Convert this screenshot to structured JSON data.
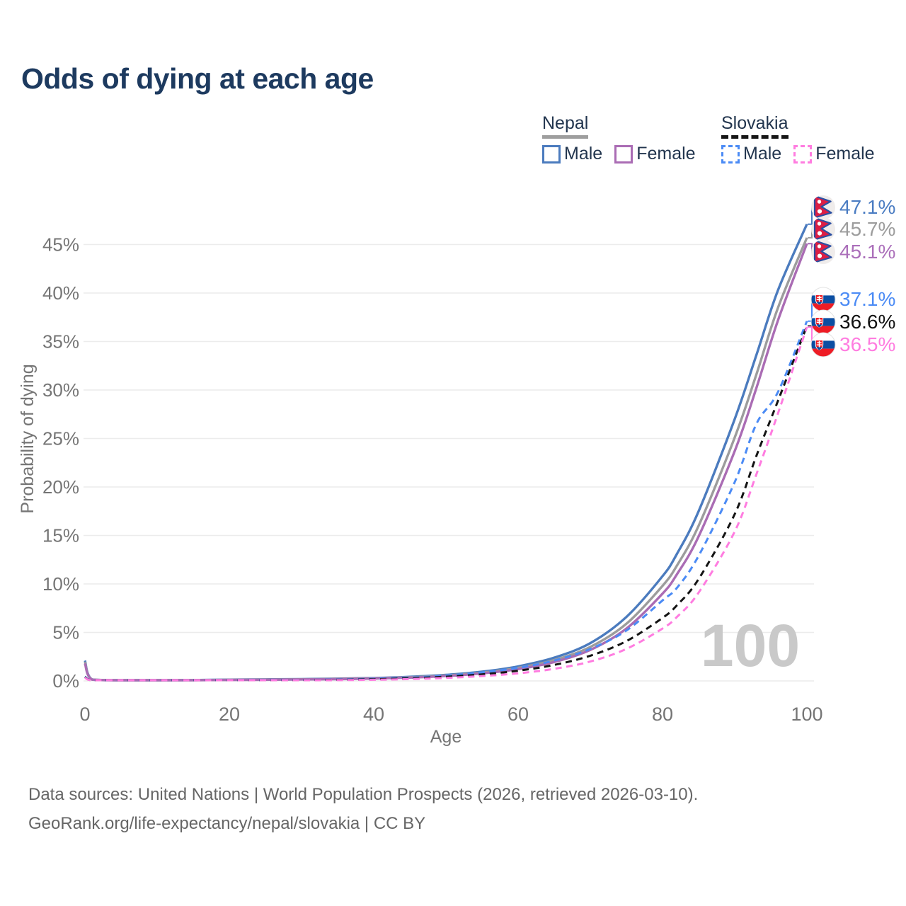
{
  "title": "Odds of dying at each age",
  "legend": {
    "groups": [
      {
        "name": "Nepal",
        "line_style": "solid",
        "underline_color": "#9e9e9e",
        "items": [
          {
            "label": "Male",
            "color": "#4b7bbe"
          },
          {
            "label": "Female",
            "color": "#aa6cb4"
          }
        ]
      },
      {
        "name": "Slovakia",
        "line_style": "dashed",
        "underline_color": "#151515",
        "items": [
          {
            "label": "Male",
            "color": "#4b8bf5"
          },
          {
            "label": "Female",
            "color": "#ff7ce0"
          }
        ]
      }
    ]
  },
  "axes": {
    "x": {
      "label": "Age",
      "tick_values": [
        0,
        20,
        40,
        60,
        80,
        100
      ]
    },
    "y": {
      "label": "Probability of dying",
      "tick_values": [
        0,
        5,
        10,
        15,
        20,
        25,
        30,
        35,
        40,
        45
      ],
      "tick_labels": [
        "0%",
        "5%",
        "10%",
        "15%",
        "20%",
        "25%",
        "30%",
        "35%",
        "40%",
        "45%"
      ]
    }
  },
  "watermark": "100",
  "end_labels": [
    {
      "text": "47.1%",
      "color": "#4a7cc2",
      "flag": "nepal",
      "series": "Nepal Male"
    },
    {
      "text": "45.7%",
      "color": "#9c9c9c",
      "flag": "nepal",
      "series": "Nepal Both sexes"
    },
    {
      "text": "45.1%",
      "color": "#ab6fba",
      "flag": "nepal",
      "series": "Nepal Female"
    },
    {
      "text": "37.1%",
      "color": "#4b8bf5",
      "flag": "slovakia",
      "series": "Slovakia Male"
    },
    {
      "text": "36.6%",
      "color": "#111111",
      "flag": "slovakia",
      "series": "Slovakia Both sexes"
    },
    {
      "text": "36.5%",
      "color": "#ff7ce0",
      "flag": "slovakia",
      "series": "Slovakia Female"
    }
  ],
  "footer": {
    "line1": "Data sources: United Nations | World Population Prospects (2026, retrieved 2026-03-10).",
    "line2": "GeoRank.org/life-expectancy/nepal/slovakia | CC BY"
  },
  "chart_data": {
    "type": "line",
    "title": "Odds of dying at each age",
    "xlabel": "Age",
    "ylabel": "Probability of dying",
    "xlim": [
      0,
      100
    ],
    "ylim": [
      0,
      48
    ],
    "grid": true,
    "legend_position": "top-right",
    "x": [
      0,
      1,
      5,
      10,
      15,
      20,
      25,
      30,
      35,
      40,
      45,
      50,
      55,
      60,
      65,
      70,
      75,
      80,
      82,
      85,
      90,
      93,
      96,
      100
    ],
    "series": [
      {
        "name": "Nepal Male",
        "color": "#4b7bbe",
        "dash": "solid",
        "end_label": "47.1%",
        "values": [
          2.1,
          0.15,
          0.06,
          0.06,
          0.09,
          0.13,
          0.16,
          0.19,
          0.23,
          0.3,
          0.42,
          0.62,
          0.95,
          1.5,
          2.4,
          3.9,
          6.6,
          10.8,
          13.1,
          17.5,
          27.0,
          33.6,
          40.3,
          47.1
        ]
      },
      {
        "name": "Nepal Both sexes",
        "color": "#9c9c9c",
        "dash": "solid",
        "end_label": "45.7%",
        "values": [
          1.95,
          0.14,
          0.055,
          0.055,
          0.08,
          0.11,
          0.14,
          0.17,
          0.21,
          0.27,
          0.38,
          0.56,
          0.86,
          1.35,
          2.15,
          3.5,
          5.9,
          9.8,
          11.9,
          16.0,
          25.1,
          31.6,
          38.5,
          45.7
        ]
      },
      {
        "name": "Nepal Female",
        "color": "#aa6cb4",
        "dash": "solid",
        "end_label": "45.1%",
        "values": [
          1.8,
          0.13,
          0.05,
          0.05,
          0.07,
          0.1,
          0.12,
          0.15,
          0.18,
          0.24,
          0.34,
          0.5,
          0.78,
          1.22,
          1.95,
          3.2,
          5.4,
          9.0,
          11.0,
          14.9,
          23.7,
          30.2,
          37.2,
          45.1
        ]
      },
      {
        "name": "Slovakia Male",
        "color": "#4b8bf5",
        "dash": "dashed",
        "end_label": "37.1%",
        "values": [
          0.45,
          0.03,
          0.015,
          0.015,
          0.04,
          0.07,
          0.09,
          0.11,
          0.15,
          0.22,
          0.34,
          0.55,
          0.88,
          1.35,
          2.1,
          3.3,
          5.2,
          8.3,
          9.6,
          12.9,
          20.5,
          26.5,
          29.8,
          37.1
        ]
      },
      {
        "name": "Slovakia Both sexes",
        "color": "#141414",
        "dash": "dashed",
        "end_label": "36.6%",
        "values": [
          0.4,
          0.025,
          0.012,
          0.012,
          0.03,
          0.05,
          0.07,
          0.09,
          0.12,
          0.17,
          0.27,
          0.43,
          0.68,
          1.05,
          1.65,
          2.6,
          4.1,
          6.5,
          7.8,
          10.5,
          17.2,
          23.2,
          28.9,
          36.6
        ]
      },
      {
        "name": "Slovakia Female",
        "color": "#ff7ce0",
        "dash": "dashed",
        "end_label": "36.5%",
        "values": [
          0.35,
          0.02,
          0.01,
          0.01,
          0.02,
          0.03,
          0.045,
          0.06,
          0.08,
          0.12,
          0.19,
          0.31,
          0.5,
          0.78,
          1.25,
          2.0,
          3.3,
          5.4,
          6.6,
          9.1,
          15.4,
          21.3,
          27.6,
          36.5
        ]
      }
    ]
  }
}
